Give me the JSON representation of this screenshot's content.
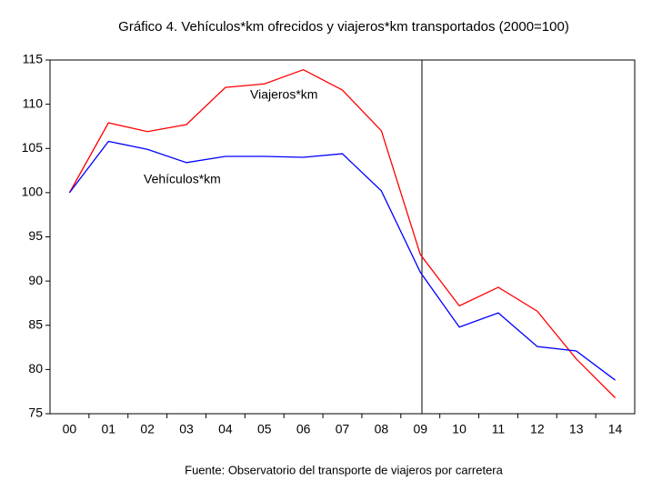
{
  "chart_data": {
    "type": "line",
    "title": "Gráfico 4. Vehículos*km ofrecidos y viajeros*km transportados (2000=100)",
    "source": "Fuente: Observatorio del transporte de viajeros por carretera",
    "categories": [
      "00",
      "01",
      "02",
      "03",
      "04",
      "05",
      "06",
      "07",
      "08",
      "09",
      "10",
      "11",
      "12",
      "13",
      "14"
    ],
    "series": [
      {
        "name": "Viajeros*km",
        "color": "#ff0000",
        "values": [
          100,
          107.9,
          106.9,
          107.7,
          111.9,
          112.3,
          113.9,
          111.6,
          107.0,
          93.0,
          87.2,
          89.3,
          86.6,
          81.2,
          76.8
        ]
      },
      {
        "name": "Vehículos*km",
        "color": "#0000ff",
        "values": [
          100,
          105.8,
          104.9,
          103.4,
          104.1,
          104.1,
          104.0,
          104.4,
          100.2,
          91.0,
          84.8,
          86.4,
          82.6,
          82.1,
          78.8
        ]
      }
    ],
    "ylim": [
      75,
      115
    ],
    "yticks": [
      75,
      80,
      85,
      90,
      95,
      100,
      105,
      110,
      115
    ]
  }
}
